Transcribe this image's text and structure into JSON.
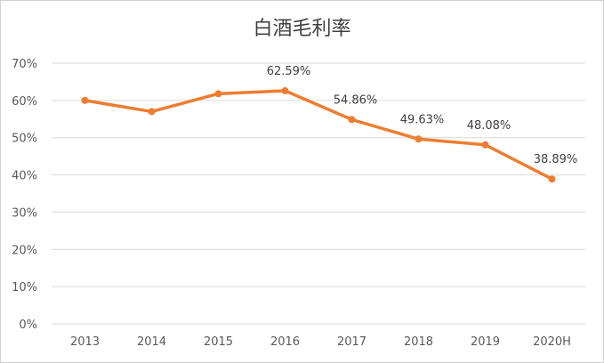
{
  "chart_data": {
    "type": "line",
    "title": "白酒毛利率",
    "xlabel": "",
    "ylabel": "",
    "categories": [
      "2013",
      "2014",
      "2015",
      "2016",
      "2017",
      "2018",
      "2019",
      "2020H"
    ],
    "series": [
      {
        "values": [
          60.0,
          57.0,
          61.8,
          62.59,
          54.86,
          49.63,
          48.08,
          38.89
        ],
        "data_labels": [
          "",
          "",
          "",
          "62.59%",
          "54.86%",
          "49.63%",
          "48.08%",
          "38.89%"
        ]
      }
    ],
    "ylim": [
      0,
      70
    ],
    "yticks": [
      "0%",
      "10%",
      "20%",
      "30%",
      "40%",
      "50%",
      "60%",
      "70%"
    ],
    "grid": true,
    "legend": "none",
    "line_color": "#ED7D31",
    "grid_color": "#d9d9d9"
  }
}
